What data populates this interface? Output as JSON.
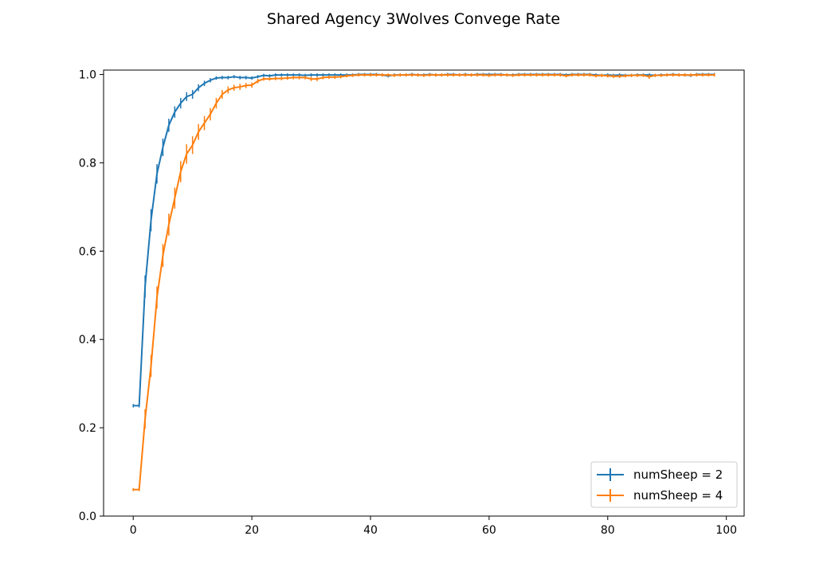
{
  "chart_data": {
    "type": "line",
    "title": "Shared Agency 3Wolves Convege Rate",
    "xlabel": "",
    "ylabel": "",
    "xlim": [
      -5,
      103
    ],
    "ylim": [
      0.0,
      1.01
    ],
    "xticks": [
      0,
      20,
      40,
      60,
      80,
      100
    ],
    "yticks": [
      0.0,
      0.2,
      0.4,
      0.6,
      0.8,
      1.0
    ],
    "xtick_labels": [
      "0",
      "20",
      "40",
      "60",
      "80",
      "100"
    ],
    "ytick_labels": [
      "0.0",
      "0.2",
      "0.4",
      "0.6",
      "0.8",
      "1.0"
    ],
    "grid": false,
    "legend_position": "lower-right",
    "series": [
      {
        "name": "numSheep = 2",
        "color": "#1f77b4",
        "x": [
          0,
          1,
          2,
          3,
          4,
          5,
          6,
          7,
          8,
          9,
          10,
          11,
          12,
          13,
          14,
          15,
          16,
          17,
          18,
          19,
          20,
          21,
          22,
          23,
          24,
          25,
          26,
          27,
          28,
          29,
          30,
          31,
          32,
          33,
          34,
          35,
          36,
          37,
          38,
          39,
          40,
          41,
          42,
          43,
          44,
          45,
          46,
          47,
          48,
          49,
          50,
          51,
          52,
          53,
          54,
          55,
          56,
          57,
          58,
          59,
          60,
          61,
          62,
          63,
          64,
          65,
          66,
          67,
          68,
          69,
          70,
          71,
          72,
          73,
          74,
          75,
          76,
          77,
          78,
          79,
          80,
          81,
          82,
          83,
          84,
          85,
          86,
          87,
          88,
          89,
          90,
          91,
          92,
          93,
          94,
          95,
          96,
          97,
          98
        ],
        "y": [
          0.25,
          0.25,
          0.52,
          0.67,
          0.775,
          0.835,
          0.885,
          0.915,
          0.935,
          0.95,
          0.955,
          0.97,
          0.98,
          0.987,
          0.992,
          0.993,
          0.993,
          0.995,
          0.993,
          0.993,
          0.992,
          0.995,
          0.998,
          0.997,
          0.999,
          0.999,
          0.999,
          0.999,
          0.999,
          0.998,
          0.999,
          0.999,
          0.999,
          0.999,
          0.999,
          0.999,
          0.999,
          0.999,
          1.0,
          1.0,
          1.0,
          1.0,
          0.999,
          0.997,
          0.999,
          0.999,
          0.999,
          1.0,
          0.999,
          0.999,
          1.0,
          0.999,
          0.999,
          1.0,
          1.0,
          0.999,
          1.0,
          0.999,
          1.0,
          1.0,
          1.0,
          1.0,
          1.0,
          0.999,
          0.999,
          1.0,
          1.0,
          1.0,
          1.0,
          1.0,
          1.0,
          1.0,
          1.0,
          0.999,
          1.0,
          1.0,
          1.0,
          1.0,
          0.999,
          0.998,
          0.999,
          0.998,
          0.999,
          0.998,
          0.998,
          0.999,
          0.999,
          0.999,
          0.998,
          0.999,
          0.999,
          1.0,
          0.999,
          0.999,
          0.998,
          1.0,
          1.0,
          1.0,
          1.0
        ],
        "err": [
          0.004,
          0.004,
          0.025,
          0.025,
          0.022,
          0.02,
          0.015,
          0.013,
          0.012,
          0.01,
          0.01,
          0.008,
          0.006,
          0.005,
          0.004,
          0.004,
          0.004,
          0.003,
          0.004,
          0.004,
          0.004,
          0.003,
          0.002,
          0.002,
          0.001,
          0.001,
          0.001,
          0.001,
          0.001,
          0.002,
          0.001,
          0.001,
          0.001,
          0.001,
          0.001,
          0.001,
          0.001,
          0.001,
          0.0,
          0.0,
          0.0,
          0.0,
          0.001,
          0.002,
          0.001,
          0.001,
          0.001,
          0.0,
          0.001,
          0.001,
          0.0,
          0.001,
          0.001,
          0.0,
          0.0,
          0.001,
          0.0,
          0.001,
          0.0,
          0.0,
          0.0,
          0.0,
          0.0,
          0.001,
          0.001,
          0.0,
          0.0,
          0.0,
          0.0,
          0.0,
          0.0,
          0.0,
          0.0,
          0.001,
          0.0,
          0.0,
          0.0,
          0.0,
          0.001,
          0.002,
          0.001,
          0.002,
          0.001,
          0.002,
          0.002,
          0.001,
          0.001,
          0.001,
          0.002,
          0.001,
          0.001,
          0.0,
          0.001,
          0.001,
          0.002,
          0.0,
          0.0,
          0.0,
          0.0
        ]
      },
      {
        "name": "numSheep = 4",
        "color": "#ff7f0e",
        "x": [
          0,
          1,
          2,
          3,
          4,
          5,
          6,
          7,
          8,
          9,
          10,
          11,
          12,
          13,
          14,
          15,
          16,
          17,
          18,
          19,
          20,
          21,
          22,
          23,
          24,
          25,
          26,
          27,
          28,
          29,
          30,
          31,
          32,
          33,
          34,
          35,
          36,
          37,
          38,
          39,
          40,
          41,
          42,
          43,
          44,
          45,
          46,
          47,
          48,
          49,
          50,
          51,
          52,
          53,
          54,
          55,
          56,
          57,
          58,
          59,
          60,
          61,
          62,
          63,
          64,
          65,
          66,
          67,
          68,
          69,
          70,
          71,
          72,
          73,
          74,
          75,
          76,
          77,
          78,
          79,
          80,
          81,
          82,
          83,
          84,
          85,
          86,
          87,
          88,
          89,
          90,
          91,
          92,
          93,
          94,
          95,
          96,
          97,
          98
        ],
        "y": [
          0.06,
          0.06,
          0.22,
          0.34,
          0.495,
          0.59,
          0.66,
          0.72,
          0.78,
          0.82,
          0.84,
          0.87,
          0.89,
          0.91,
          0.935,
          0.955,
          0.965,
          0.97,
          0.972,
          0.975,
          0.976,
          0.985,
          0.99,
          0.99,
          0.991,
          0.991,
          0.992,
          0.993,
          0.993,
          0.993,
          0.99,
          0.99,
          0.993,
          0.994,
          0.994,
          0.995,
          0.997,
          0.998,
          0.999,
          0.999,
          0.999,
          0.999,
          0.999,
          0.999,
          0.998,
          0.999,
          0.999,
          0.999,
          0.999,
          0.998,
          0.999,
          0.999,
          0.999,
          0.999,
          0.999,
          0.999,
          0.999,
          0.999,
          0.999,
          0.999,
          0.998,
          0.999,
          0.999,
          0.999,
          0.998,
          0.999,
          0.999,
          0.999,
          0.999,
          0.999,
          0.999,
          0.999,
          0.999,
          0.997,
          0.999,
          0.999,
          0.999,
          0.999,
          0.997,
          0.998,
          0.997,
          0.996,
          0.996,
          0.997,
          0.998,
          0.998,
          0.998,
          0.995,
          0.998,
          0.998,
          0.999,
          0.999,
          0.999,
          0.999,
          0.999,
          0.999,
          0.999,
          0.999,
          0.999
        ],
        "err": [
          0.002,
          0.002,
          0.022,
          0.025,
          0.025,
          0.026,
          0.025,
          0.024,
          0.024,
          0.022,
          0.02,
          0.018,
          0.016,
          0.014,
          0.012,
          0.01,
          0.008,
          0.007,
          0.007,
          0.006,
          0.006,
          0.005,
          0.004,
          0.004,
          0.004,
          0.004,
          0.004,
          0.004,
          0.004,
          0.004,
          0.005,
          0.005,
          0.004,
          0.004,
          0.004,
          0.003,
          0.002,
          0.001,
          0.001,
          0.001,
          0.001,
          0.001,
          0.001,
          0.001,
          0.001,
          0.001,
          0.001,
          0.001,
          0.001,
          0.001,
          0.001,
          0.001,
          0.001,
          0.001,
          0.001,
          0.001,
          0.001,
          0.001,
          0.001,
          0.001,
          0.002,
          0.001,
          0.001,
          0.001,
          0.002,
          0.001,
          0.001,
          0.001,
          0.001,
          0.001,
          0.001,
          0.001,
          0.001,
          0.003,
          0.001,
          0.001,
          0.001,
          0.001,
          0.003,
          0.002,
          0.003,
          0.004,
          0.004,
          0.003,
          0.002,
          0.002,
          0.002,
          0.005,
          0.002,
          0.002,
          0.001,
          0.001,
          0.001,
          0.001,
          0.001,
          0.001,
          0.001,
          0.001,
          0.001
        ]
      }
    ]
  }
}
